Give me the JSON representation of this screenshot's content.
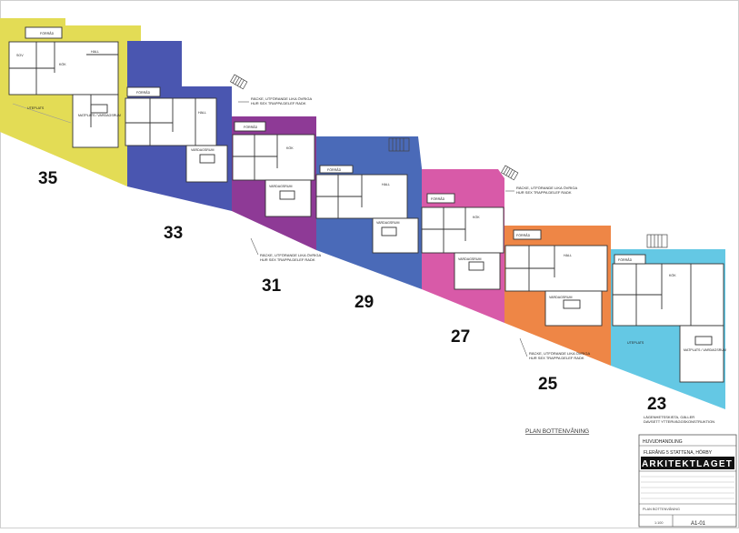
{
  "plan": {
    "title": "PLAN BOTTENVÅNING",
    "note_lagenhet": [
      "LÄGENHETSSKISTA, GÄLLER",
      "DAVSETT YTTERVÄGGSKONSTRUKTION"
    ],
    "note_rack": [
      "RÄCKE, UTFÖRANDE LIKA ÖVRIGA",
      "HUR SEX TRAPPA DELEF RADK"
    ]
  },
  "units": [
    {
      "number": "35",
      "color": "#e3dc55"
    },
    {
      "number": "33",
      "color": "#4a56b0"
    },
    {
      "number": "31",
      "color": "#8e3a96"
    },
    {
      "number": "29",
      "color": "#4a6ab8"
    },
    {
      "number": "27",
      "color": "#d85aa8"
    },
    {
      "number": "25",
      "color": "#ee8646"
    },
    {
      "number": "23",
      "color": "#64c8e4"
    }
  ],
  "room_labels": {
    "entre": "FÖRRÅD",
    "hall": "HALL",
    "kok": "KÖK",
    "sov": "SOV",
    "bad": "BAD",
    "vardagsrum": "VARDAGSRUM",
    "matplats": "MATPLATS / VARDAGSRUM",
    "uteplats": "UTEPLATS"
  },
  "title_block": {
    "handling": "HUVUDHANDLING",
    "project": "FLERÅNG 5 STATTENA, HÖRBY",
    "firm": "ARKITEKTLAGET",
    "drawing_type": "PLAN BOTTENVÅNING",
    "scale": "1:100",
    "sheet": "A1-01"
  }
}
